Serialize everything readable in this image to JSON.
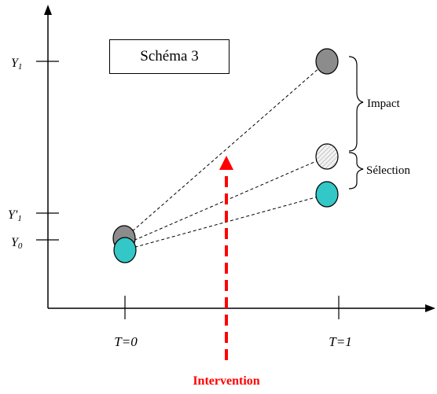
{
  "title": "Schéma 3",
  "y_ticks": {
    "y1": "Y",
    "y1_sub": "1",
    "y1prime": "Y'",
    "y1prime_sub": "1",
    "y0": "Y",
    "y0_sub": "0"
  },
  "x_ticks": {
    "t0": "T=0",
    "t1": "T=1"
  },
  "brackets": {
    "impact": "Impact",
    "selection": "Sélection"
  },
  "intervention": {
    "label": "Intervention",
    "color": "#ff0000"
  },
  "colors": {
    "gray_point": "#8c8c8c",
    "light_point": "#e6e6e6",
    "teal_point": "#33c7c7",
    "axis": "#000000"
  }
}
